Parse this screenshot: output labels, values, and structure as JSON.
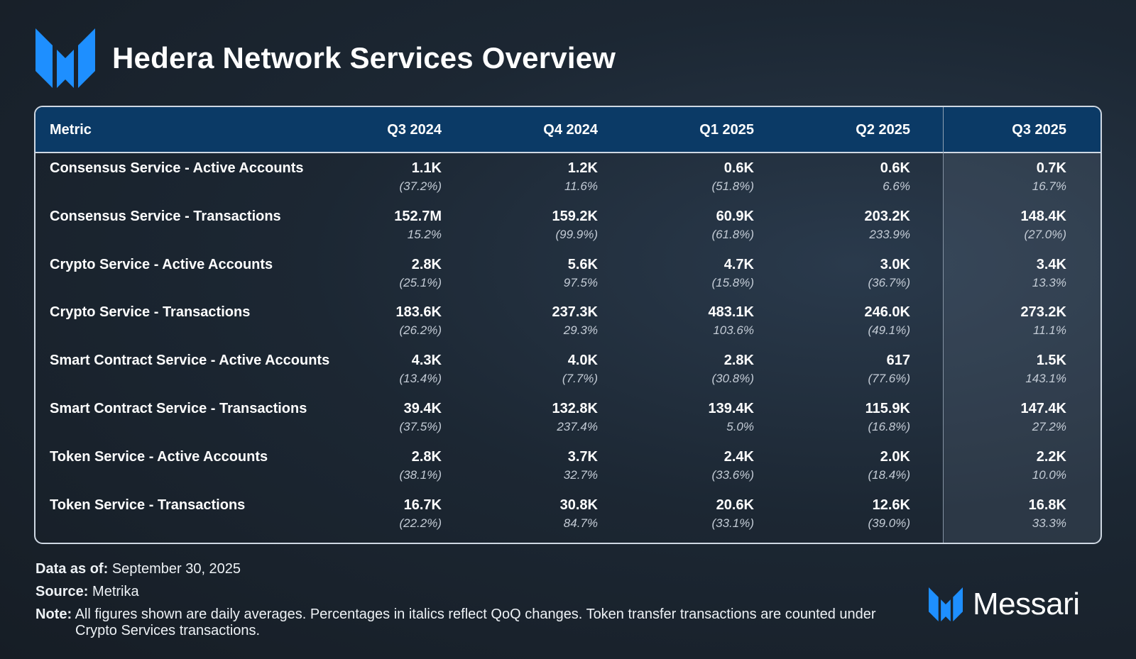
{
  "header": {
    "title": "Hedera Network Services Overview",
    "logo_icon": "messari-logo-icon",
    "accent": "#1e8fff"
  },
  "chart_data": {
    "type": "table",
    "title": "Hedera Network Services Overview",
    "columns": [
      "Metric",
      "Q3 2024",
      "Q4 2024",
      "Q1 2025",
      "Q2 2025",
      "Q3 2025"
    ],
    "highlight_column": "Q3 2025",
    "rows": [
      {
        "metric": "Consensus Service - Active Accounts",
        "values": [
          "1.1K",
          "1.2K",
          "0.6K",
          "0.6K",
          "0.7K"
        ],
        "changes": [
          "(37.2%)",
          "11.6%",
          "(51.8%)",
          "6.6%",
          "16.7%"
        ]
      },
      {
        "metric": "Consensus Service - Transactions",
        "values": [
          "152.7M",
          "159.2K",
          "60.9K",
          "203.2K",
          "148.4K"
        ],
        "changes": [
          "15.2%",
          "(99.9%)",
          "(61.8%)",
          "233.9%",
          "(27.0%)"
        ]
      },
      {
        "metric": "Crypto Service - Active Accounts",
        "values": [
          "2.8K",
          "5.6K",
          "4.7K",
          "3.0K",
          "3.4K"
        ],
        "changes": [
          "(25.1%)",
          "97.5%",
          "(15.8%)",
          "(36.7%)",
          "13.3%"
        ]
      },
      {
        "metric": "Crypto Service - Transactions",
        "values": [
          "183.6K",
          "237.3K",
          "483.1K",
          "246.0K",
          "273.2K"
        ],
        "changes": [
          "(26.2%)",
          "29.3%",
          "103.6%",
          "(49.1%)",
          "11.1%"
        ]
      },
      {
        "metric": "Smart Contract Service - Active Accounts",
        "values": [
          "4.3K",
          "4.0K",
          "2.8K",
          "617",
          "1.5K"
        ],
        "changes": [
          "(13.4%)",
          "(7.7%)",
          "(30.8%)",
          "(77.6%)",
          "143.1%"
        ]
      },
      {
        "metric": "Smart Contract Service - Transactions",
        "values": [
          "39.4K",
          "132.8K",
          "139.4K",
          "115.9K",
          "147.4K"
        ],
        "changes": [
          "(37.5%)",
          "237.4%",
          "5.0%",
          "(16.8%)",
          "27.2%"
        ]
      },
      {
        "metric": "Token Service - Active Accounts",
        "values": [
          "2.8K",
          "3.7K",
          "2.4K",
          "2.0K",
          "2.2K"
        ],
        "changes": [
          "(38.1%)",
          "32.7%",
          "(33.6%)",
          "(18.4%)",
          "10.0%"
        ]
      },
      {
        "metric": "Token Service - Transactions",
        "values": [
          "16.7K",
          "30.8K",
          "20.6K",
          "12.6K",
          "16.8K"
        ],
        "changes": [
          "(22.2%)",
          "84.7%",
          "(33.1%)",
          "(39.0%)",
          "33.3%"
        ]
      }
    ]
  },
  "footer": {
    "data_as_of_label": "Data as of:",
    "data_as_of_value": "September 30, 2025",
    "source_label": "Source:",
    "source_value": "Metrika",
    "note_label": "Note:",
    "note_value": "All figures shown are daily averages. Percentages in italics reflect QoQ changes.  Token transfer transactions are counted under Crypto Services transactions.",
    "brand_name": "Messari"
  }
}
